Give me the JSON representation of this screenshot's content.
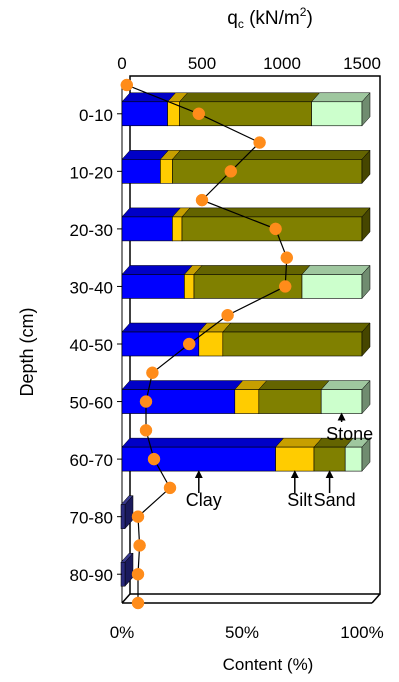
{
  "chart_data": {
    "type": "bar",
    "orientation": "horizontal",
    "stacked": true,
    "three_d": true,
    "categories": [
      "0-10",
      "10-20",
      "20-30",
      "30-40",
      "40-50",
      "50-60",
      "60-70",
      "70-80",
      "80-90"
    ],
    "series": [
      {
        "name": "Clay",
        "color": "#0000FF",
        "values": [
          19,
          16,
          21,
          26,
          32,
          47,
          64,
          0,
          0
        ]
      },
      {
        "name": "Silt",
        "color": "#FFCC00",
        "values": [
          5,
          5,
          4,
          4,
          10,
          10,
          16,
          0,
          0
        ]
      },
      {
        "name": "Sand",
        "color": "#808000",
        "values": [
          55,
          79,
          75,
          45,
          58,
          26,
          13,
          0,
          0
        ]
      },
      {
        "name": "Stone",
        "color": "#CCFFCC",
        "values": [
          21,
          0,
          0,
          25,
          0,
          17,
          7,
          0,
          0
        ]
      }
    ],
    "xlabel": "Content (%)",
    "ylabel": "Depth (cm)",
    "xlim": [
      0,
      100
    ],
    "x_ticks": [
      "0%",
      "50%",
      "100%"
    ],
    "top_axis": {
      "label": "q",
      "label_subscript": "c",
      "label_units": " (kN/m",
      "label_units_sup": "2",
      "label_units_close": ")",
      "lim": [
        0,
        1500
      ],
      "ticks": [
        "0",
        "500",
        "1000",
        "1500"
      ]
    },
    "qc_profile": {
      "marker_color": "#FF8C1A",
      "points": [
        {
          "depth": 0,
          "qc": 30
        },
        {
          "depth": 5,
          "qc": 480
        },
        {
          "depth": 10,
          "qc": 860
        },
        {
          "depth": 15,
          "qc": 680
        },
        {
          "depth": 20,
          "qc": 500
        },
        {
          "depth": 25,
          "qc": 960
        },
        {
          "depth": 30,
          "qc": 1030
        },
        {
          "depth": 35,
          "qc": 1020
        },
        {
          "depth": 40,
          "qc": 660
        },
        {
          "depth": 45,
          "qc": 420
        },
        {
          "depth": 50,
          "qc": 190
        },
        {
          "depth": 55,
          "qc": 150
        },
        {
          "depth": 60,
          "qc": 150
        },
        {
          "depth": 65,
          "qc": 200
        },
        {
          "depth": 70,
          "qc": 300
        },
        {
          "depth": 75,
          "qc": 100
        },
        {
          "depth": 80,
          "qc": 110
        },
        {
          "depth": 85,
          "qc": 100
        },
        {
          "depth": 90,
          "qc": 100
        }
      ]
    },
    "annotations": [
      {
        "text": "Clay",
        "series": "Clay"
      },
      {
        "text": "Silt",
        "series": "Silt"
      },
      {
        "text": "Sand",
        "series": "Sand"
      },
      {
        "text": "Stone",
        "series": "Stone"
      }
    ],
    "grid": false,
    "legend": "none"
  }
}
